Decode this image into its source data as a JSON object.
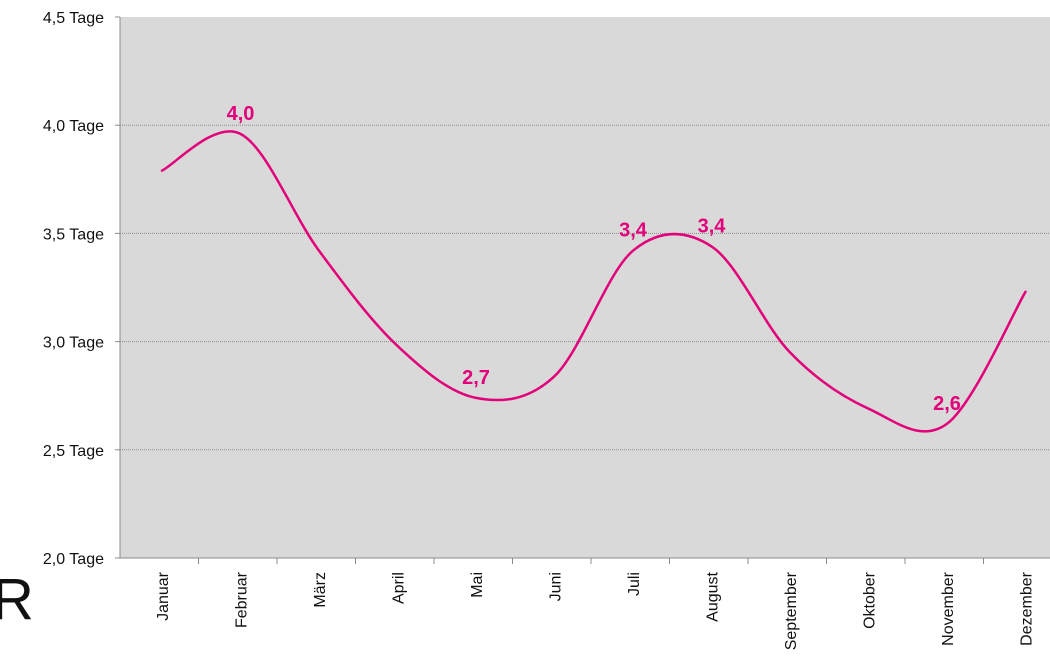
{
  "colors": {
    "plot_background": "#d9d9d9",
    "line": "#e2007a",
    "gridline": "#8c8c8c",
    "text": "#111111"
  },
  "corner_glyph": "R",
  "chart_data": {
    "type": "line",
    "title": "",
    "xlabel": "",
    "ylabel": "",
    "categories": [
      "Januar",
      "Februar",
      "März",
      "April",
      "Mai",
      "Juni",
      "Juli",
      "August",
      "September",
      "Oktober",
      "November",
      "Dezember"
    ],
    "series": [
      {
        "values": [
          3.79,
          3.96,
          3.42,
          2.98,
          2.74,
          2.84,
          3.42,
          3.44,
          2.95,
          2.69,
          2.62,
          3.23
        ],
        "smooth": true
      }
    ],
    "ylim": [
      2.0,
      4.5
    ],
    "y_ticks": [
      {
        "value": 2.0,
        "label": "2,0 Tage"
      },
      {
        "value": 2.5,
        "label": "2,5 Tage"
      },
      {
        "value": 3.0,
        "label": "3,0 Tage"
      },
      {
        "value": 3.5,
        "label": "3,5 Tage"
      },
      {
        "value": 4.0,
        "label": "4,0 Tage"
      },
      {
        "value": 4.5,
        "label": "4,5 Tage"
      }
    ],
    "grid": true,
    "legend": "none",
    "data_labels": [
      {
        "category": "Februar",
        "text": "4,0"
      },
      {
        "category": "Mai",
        "text": "2,7"
      },
      {
        "category": "Juli",
        "text": "3,4"
      },
      {
        "category": "August",
        "text": "3,4"
      },
      {
        "category": "November",
        "text": "2,6"
      }
    ]
  }
}
